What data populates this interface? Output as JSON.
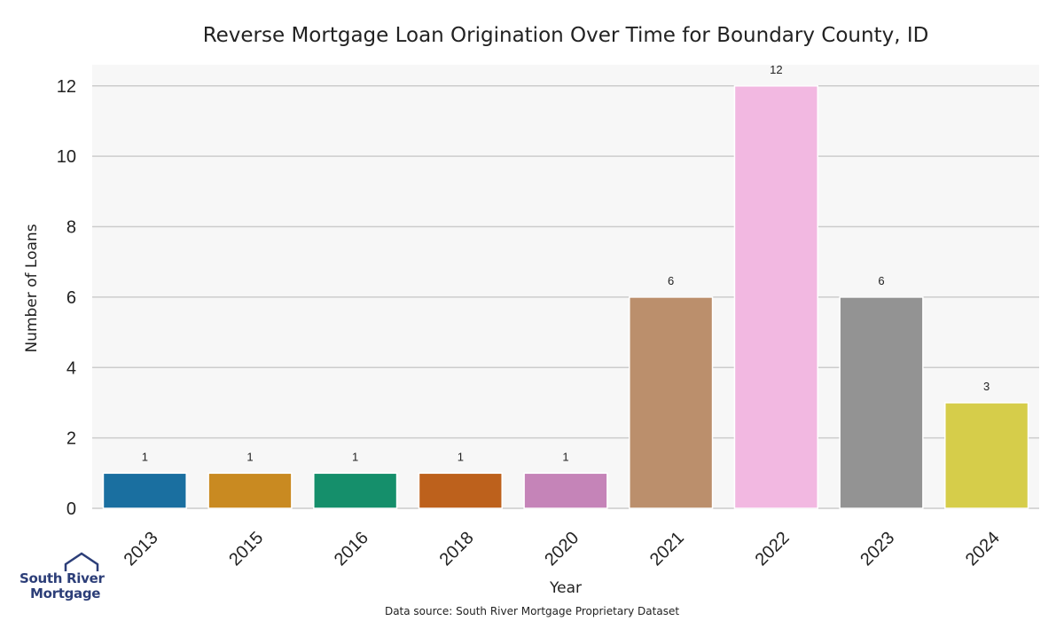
{
  "chart_data": {
    "type": "bar",
    "title": "Reverse Mortgage Loan Origination Over Time for Boundary County, ID",
    "xlabel": "Year",
    "ylabel": "Number of Loans",
    "categories": [
      "2013",
      "2015",
      "2016",
      "2018",
      "2020",
      "2021",
      "2022",
      "2023",
      "2024"
    ],
    "values": [
      1,
      1,
      1,
      1,
      1,
      6,
      12,
      6,
      3
    ],
    "colors": [
      "#1a6fa0",
      "#c98a21",
      "#158f6b",
      "#bd611c",
      "#c584b8",
      "#bb8f6c",
      "#f2b8e1",
      "#939393",
      "#d6cd4a"
    ],
    "ylim": [
      0,
      12.6
    ],
    "yticks": [
      "0",
      "2",
      "4",
      "6",
      "8",
      "10",
      "12"
    ],
    "grid": true,
    "background": "#f7f7f7",
    "grid_color": "#cccccc",
    "source": "Data source: South River Mortgage Proprietary Dataset"
  },
  "logo": {
    "line1": "South River",
    "line2": "Mortgage",
    "color": "#2c3e78"
  }
}
